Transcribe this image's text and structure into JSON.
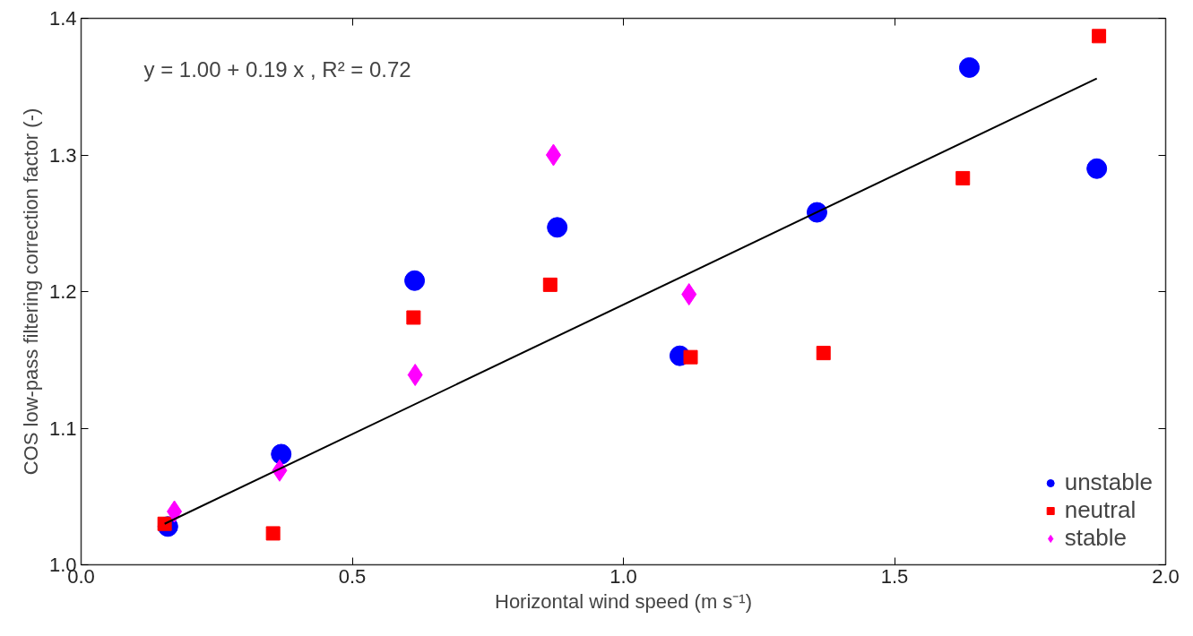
{
  "chart_data": {
    "type": "scatter",
    "xlabel": "Horizontal wind speed (m s⁻¹)",
    "ylabel": "COS low-pass filtering correction factor (-)",
    "annotations": [
      "y = 1.00 + 0.19 x , R² = 0.72"
    ],
    "xlim": [
      0,
      2
    ],
    "ylim": [
      1.0,
      1.4
    ],
    "xticks": [
      {
        "value": 0,
        "label": "0.0"
      },
      0.5,
      {
        "value": 1,
        "label": "1.0"
      },
      1.5,
      {
        "value": 2,
        "label": "2.0"
      }
    ],
    "yticks": [
      {
        "value": 1,
        "label": "1.0"
      },
      1.1,
      1.2,
      1.3,
      1.4
    ],
    "grid": false,
    "legend": "bottom right",
    "series": [
      {
        "name": "unstable",
        "color": "#0000ff",
        "marker": "circle",
        "x": [
          0.16,
          0.369,
          0.615,
          0.878,
          1.104,
          1.357,
          1.638,
          1.873
        ],
        "values": [
          1.028,
          1.081,
          1.208,
          1.247,
          1.153,
          1.258,
          1.364,
          1.29
        ]
      },
      {
        "name": "neutral",
        "color": "#ff0000",
        "marker": "square",
        "x": [
          0.154,
          0.354,
          0.613,
          0.865,
          1.124,
          1.369,
          1.626,
          1.877
        ],
        "values": [
          1.03,
          1.023,
          1.181,
          1.205,
          1.152,
          1.155,
          1.283,
          1.387
        ]
      },
      {
        "name": "stable",
        "color": "#ff00ff",
        "marker": "diamond",
        "x": [
          0.172,
          0.366,
          0.616,
          0.871,
          1.121
        ],
        "values": [
          1.039,
          1.069,
          1.139,
          1.3,
          1.198
        ]
      },
      {
        "type": "line",
        "color": "#000000",
        "line_style": "solid",
        "x": [
          0.154,
          1.873
        ],
        "values": [
          1.03,
          1.356
        ]
      }
    ]
  }
}
